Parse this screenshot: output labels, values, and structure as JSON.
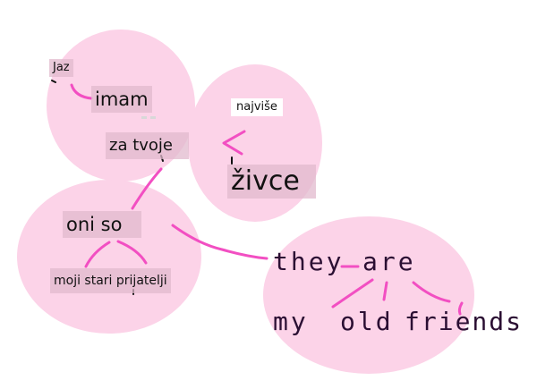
{
  "bubble_color": "#fcd3e8",
  "line_color": "#f24fc2",
  "ink_color": "#2b0f33",
  "chip_color": "#e2bace",
  "slovene": {
    "jaz": "Jaz",
    "imam": "imam",
    "za_tvoje": "za tvoje",
    "najvise": "najviše",
    "zivce": "živce",
    "oni_so": "oni so",
    "moji_stari_prijatelji": "moji stari prijatelji"
  },
  "english": {
    "they": "they",
    "are": "are",
    "my": "my",
    "old": "old",
    "friends": "friends"
  }
}
